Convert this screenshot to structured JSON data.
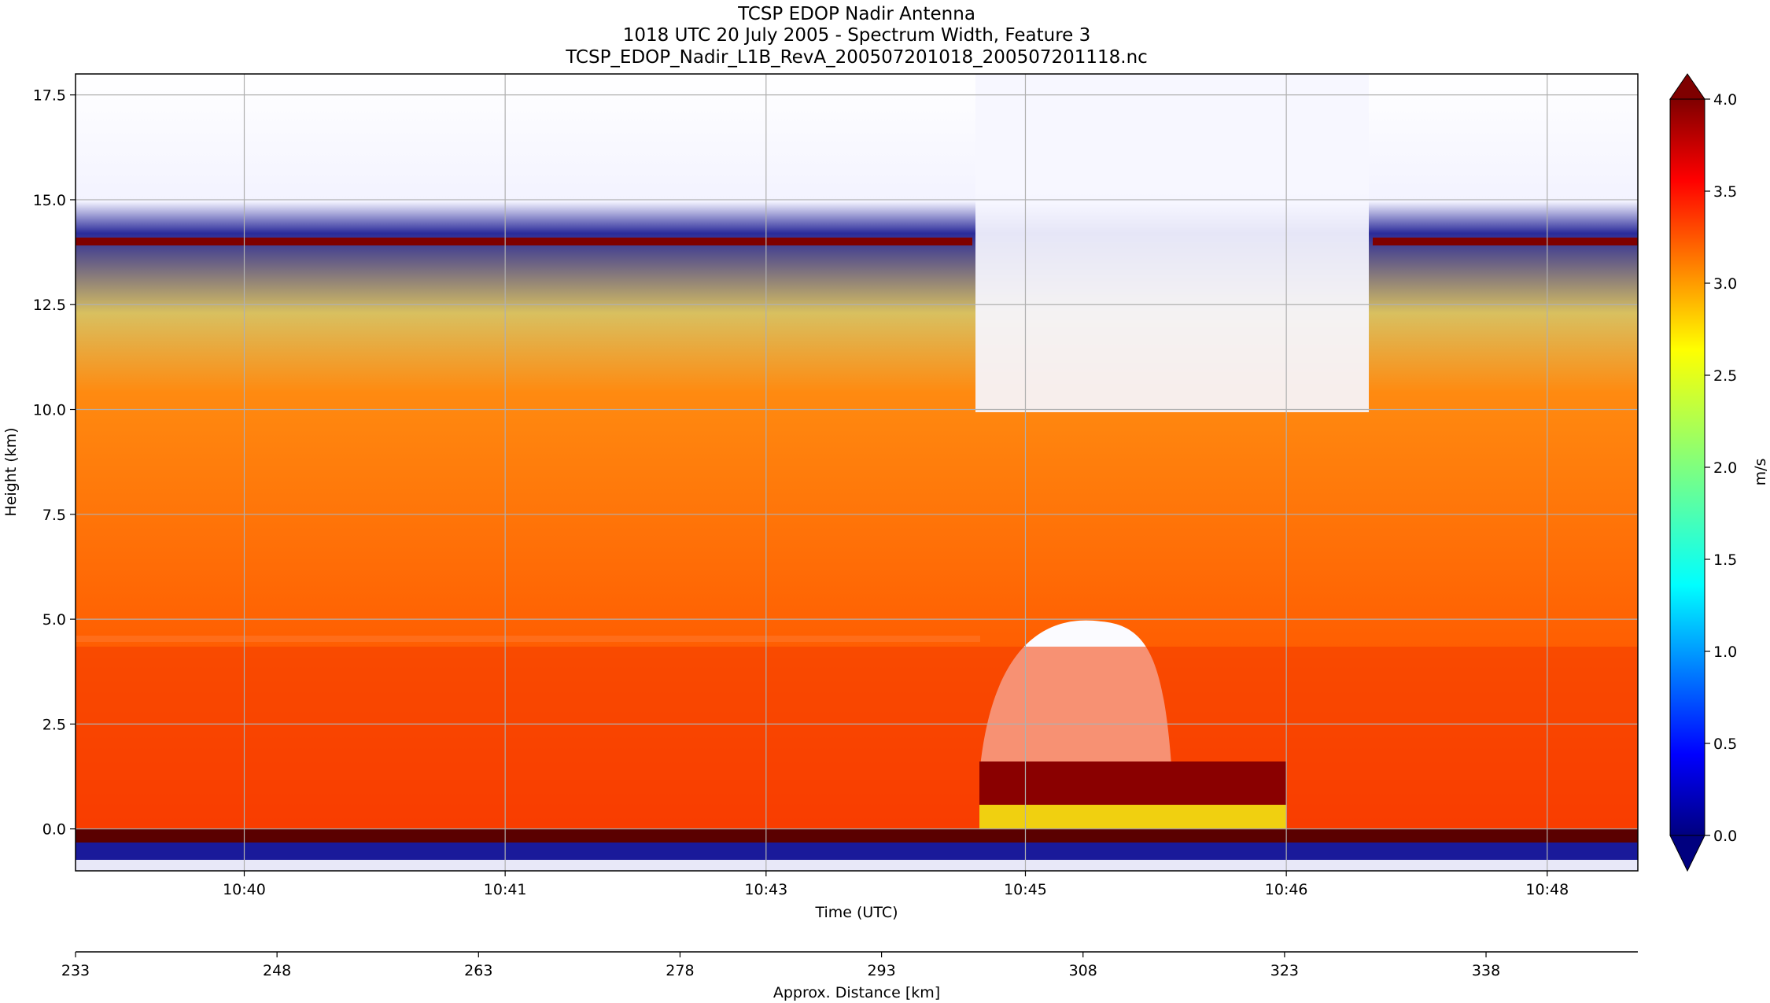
{
  "chart_data": {
    "type": "heatmap",
    "title_lines": [
      "TCSP EDOP Nadir Antenna",
      "1018 UTC 20 July 2005 - Spectrum Width, Feature 3",
      "TCSP_EDOP_Nadir_L1B_RevA_200507201018_200507201118.nc"
    ],
    "xlabel": "Time (UTC)",
    "ylabel": "Height (km)",
    "x_ticks": [
      "10:40",
      "10:41",
      "10:43",
      "10:45",
      "10:46",
      "10:48"
    ],
    "y_ticks": [
      "0.0",
      "2.5",
      "5.0",
      "7.5",
      "10.0",
      "12.5",
      "15.0",
      "17.5"
    ],
    "ylim": [
      -1.0,
      18.0
    ],
    "grid": true,
    "secondary_xlabel": "Approx. Distance [km]",
    "secondary_x_ticks": [
      "233",
      "248",
      "263",
      "278",
      "293",
      "308",
      "323",
      "338"
    ],
    "colorbar": {
      "label": "m/s",
      "ticks": [
        "0.0",
        "0.5",
        "1.0",
        "1.5",
        "2.0",
        "2.5",
        "3.0",
        "3.5",
        "4.0"
      ],
      "range": [
        0.0,
        4.0
      ],
      "colormap": "jet",
      "extend": "both"
    },
    "features": [
      {
        "value": "surface echo band",
        "height_km": 0.0
      },
      {
        "value": "melting layer band",
        "height_km": 4.5
      },
      {
        "value": "aircraft-altitude band",
        "height_km": 14.0
      }
    ]
  },
  "colors": {
    "cmap": [
      "#00007f",
      "#0000ff",
      "#007fff",
      "#00ffff",
      "#7fff7f",
      "#ffff00",
      "#ff7f00",
      "#ff0000",
      "#7f0000"
    ],
    "grid": "#b0b0b0"
  }
}
